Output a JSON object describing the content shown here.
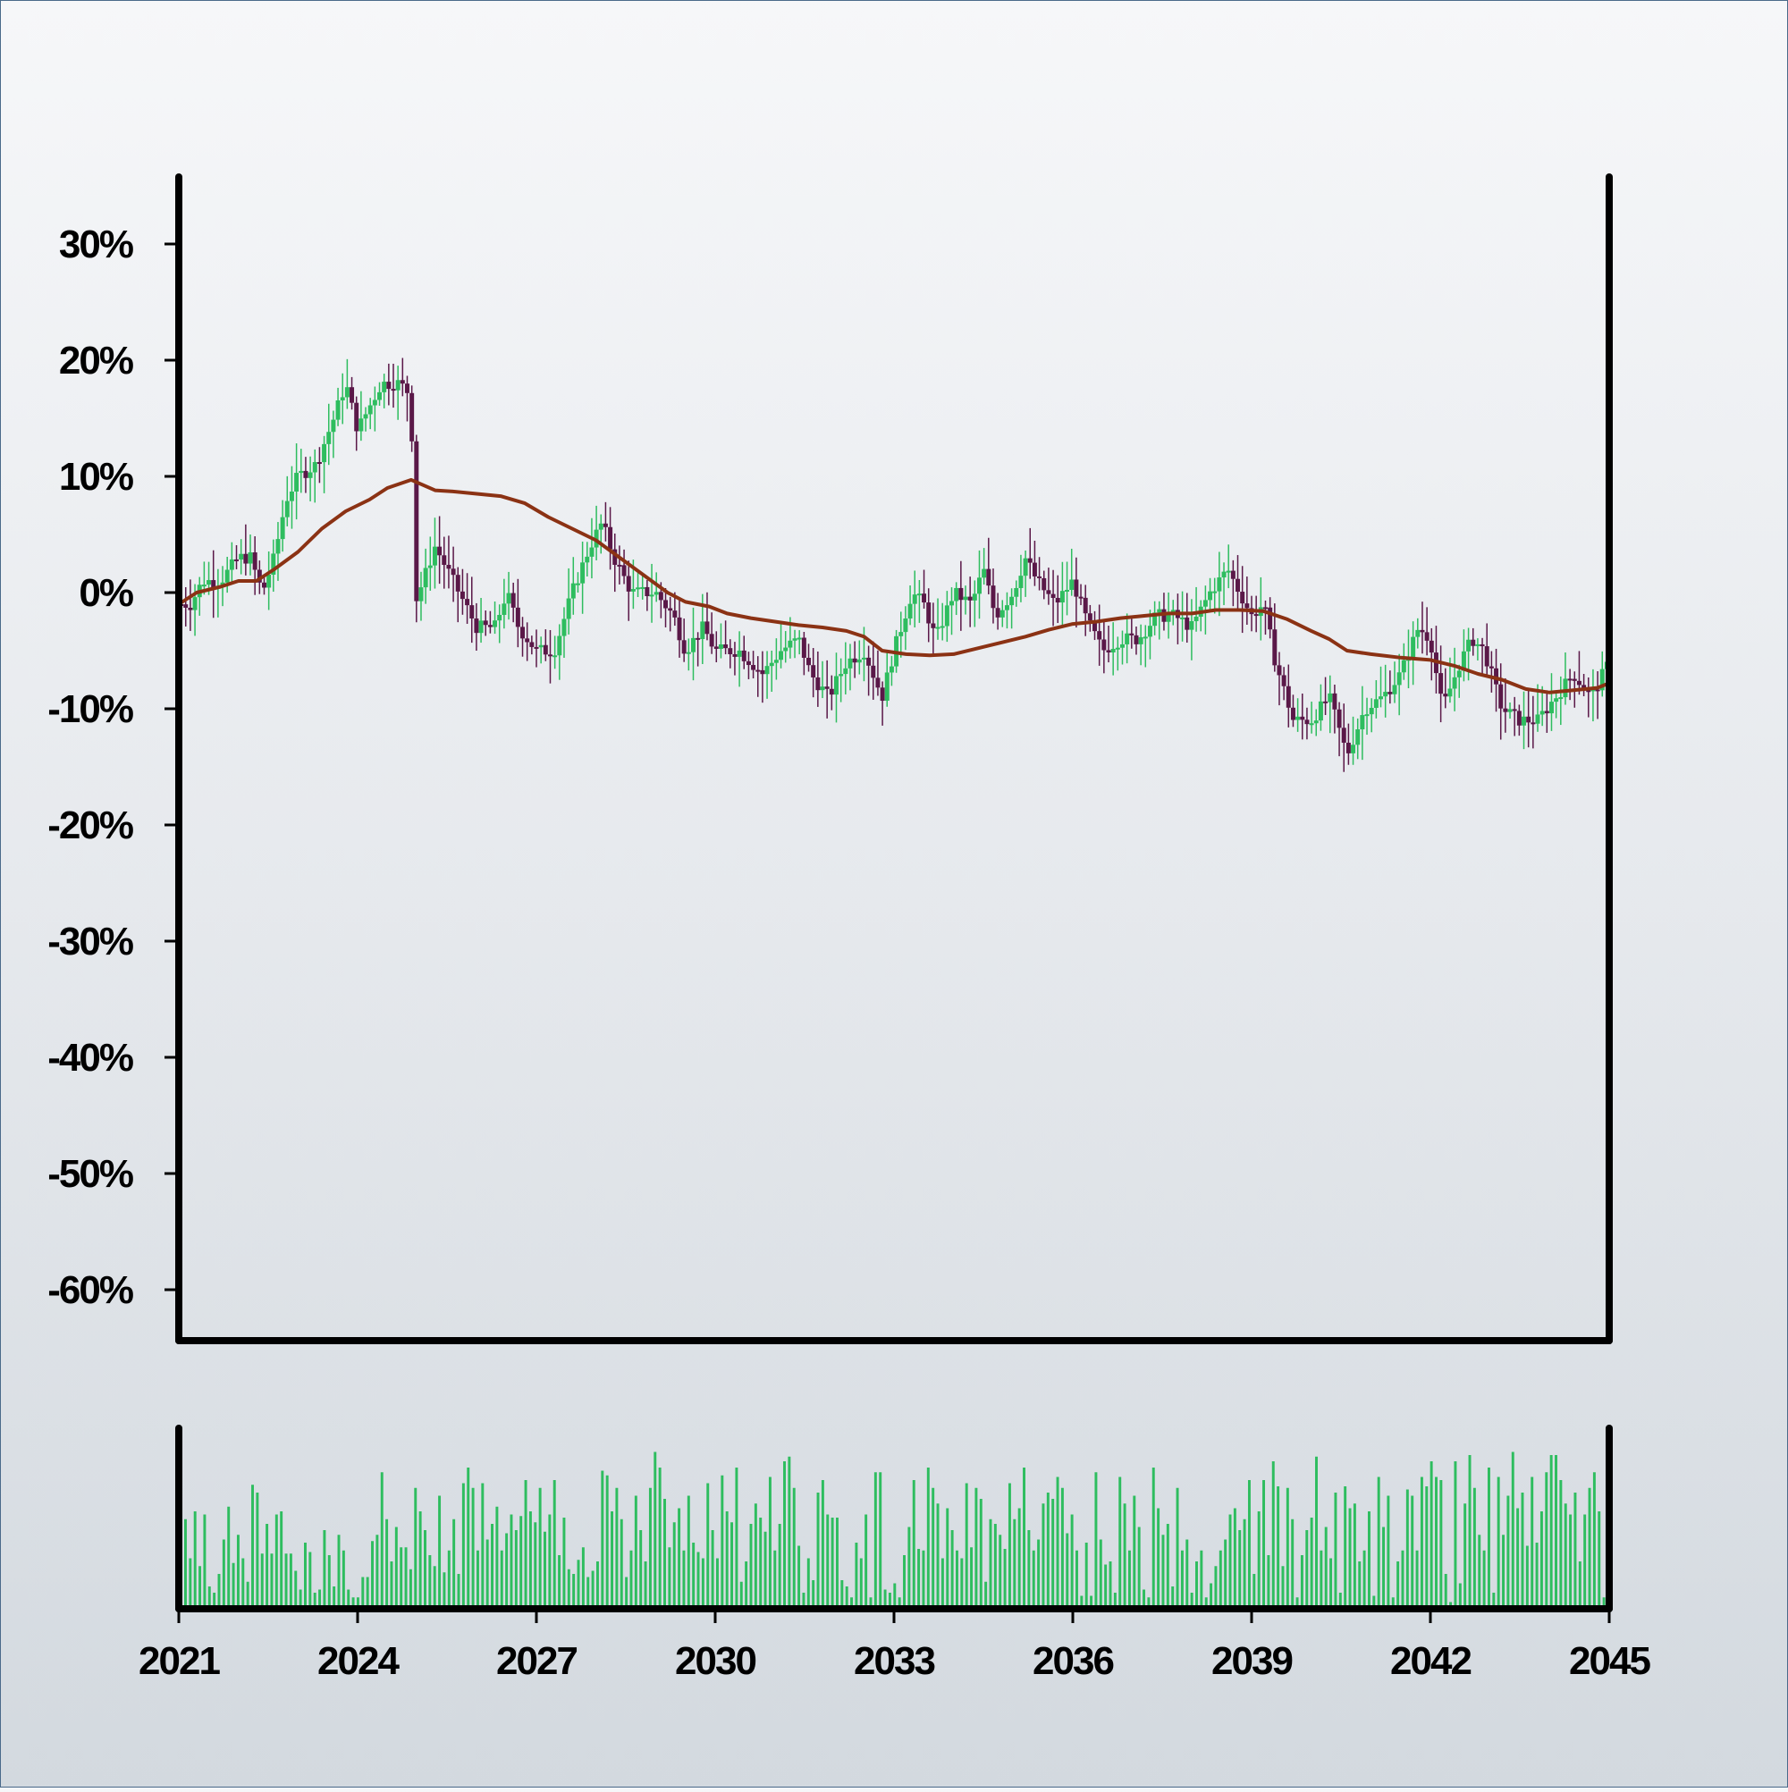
{
  "chart_data": {
    "type": "candlestick",
    "x_start": "2021",
    "x_end": "2045",
    "x_range": [
      2021,
      2045
    ],
    "ylim": [
      -65,
      35
    ],
    "y_ticks": [
      30,
      20,
      10,
      0,
      -10,
      -20,
      -30,
      -40,
      -50,
      -60
    ],
    "y_tick_labels": [
      "30%",
      "20%",
      "10%",
      "0%",
      "-10%",
      "-20%",
      "-30%",
      "-40%",
      "-50%",
      "-60%"
    ],
    "x_ticks": [
      2021,
      2024,
      2027,
      2030,
      2033,
      2036,
      2039,
      2042,
      2045
    ],
    "x_tick_labels": [
      "2021",
      "2024",
      "2027",
      "2030",
      "2033",
      "2036",
      "2039",
      "2042",
      "2045"
    ],
    "colors": {
      "up": "#2ebd5f",
      "down": "#5a1848",
      "moving_average": "#8b3214",
      "volume": "#2ebd5f",
      "axis": "#000000"
    },
    "close_path": [
      [
        2021.0,
        -1
      ],
      [
        2021.2,
        -1
      ],
      [
        2021.4,
        1
      ],
      [
        2021.7,
        1
      ],
      [
        2022.0,
        3
      ],
      [
        2022.2,
        3
      ],
      [
        2022.4,
        0
      ],
      [
        2022.6,
        3
      ],
      [
        2022.8,
        8
      ],
      [
        2023.0,
        10
      ],
      [
        2023.3,
        11
      ],
      [
        2023.6,
        15
      ],
      [
        2023.8,
        18
      ],
      [
        2024.0,
        14
      ],
      [
        2024.2,
        16
      ],
      [
        2024.4,
        18
      ],
      [
        2024.7,
        18
      ],
      [
        2024.9,
        17
      ],
      [
        2024.95,
        -1
      ],
      [
        2025.1,
        1
      ],
      [
        2025.3,
        4
      ],
      [
        2025.5,
        2
      ],
      [
        2025.7,
        0
      ],
      [
        2026.0,
        -3
      ],
      [
        2026.3,
        -3
      ],
      [
        2026.5,
        0
      ],
      [
        2026.7,
        -3
      ],
      [
        2027.0,
        -5
      ],
      [
        2027.3,
        -5
      ],
      [
        2027.6,
        0
      ],
      [
        2027.9,
        4
      ],
      [
        2028.1,
        6
      ],
      [
        2028.3,
        3
      ],
      [
        2028.6,
        0
      ],
      [
        2029.0,
        0
      ],
      [
        2029.3,
        -2
      ],
      [
        2029.5,
        -5
      ],
      [
        2029.8,
        -3
      ],
      [
        2030.0,
        -5
      ],
      [
        2030.4,
        -5
      ],
      [
        2030.8,
        -7
      ],
      [
        2031.1,
        -5
      ],
      [
        2031.4,
        -4
      ],
      [
        2031.6,
        -7
      ],
      [
        2031.9,
        -9
      ],
      [
        2032.2,
        -6
      ],
      [
        2032.5,
        -5
      ],
      [
        2032.8,
        -9
      ],
      [
        2033.0,
        -5
      ],
      [
        2033.3,
        0
      ],
      [
        2033.5,
        -1
      ],
      [
        2033.7,
        -4
      ],
      [
        2034.0,
        0
      ],
      [
        2034.3,
        -1
      ],
      [
        2034.5,
        2
      ],
      [
        2034.7,
        -2
      ],
      [
        2035.0,
        0
      ],
      [
        2035.2,
        3
      ],
      [
        2035.4,
        1
      ],
      [
        2035.7,
        -1
      ],
      [
        2036.0,
        1
      ],
      [
        2036.2,
        -2
      ],
      [
        2036.5,
        -5
      ],
      [
        2036.8,
        -4
      ],
      [
        2037.1,
        -4
      ],
      [
        2037.4,
        -2
      ],
      [
        2037.7,
        -2
      ],
      [
        2038.0,
        -3
      ],
      [
        2038.3,
        0
      ],
      [
        2038.6,
        2
      ],
      [
        2038.8,
        0
      ],
      [
        2039.0,
        -2
      ],
      [
        2039.2,
        -1
      ],
      [
        2039.4,
        -6
      ],
      [
        2039.7,
        -11
      ],
      [
        2040.0,
        -11
      ],
      [
        2040.3,
        -9
      ],
      [
        2040.6,
        -14
      ],
      [
        2040.9,
        -10
      ],
      [
        2041.2,
        -9
      ],
      [
        2041.5,
        -7
      ],
      [
        2041.8,
        -3
      ],
      [
        2042.0,
        -4
      ],
      [
        2042.2,
        -10
      ],
      [
        2042.5,
        -6
      ],
      [
        2042.7,
        -4
      ],
      [
        2042.9,
        -5
      ],
      [
        2043.2,
        -10
      ],
      [
        2043.5,
        -11
      ],
      [
        2043.8,
        -11
      ],
      [
        2044.1,
        -9
      ],
      [
        2044.4,
        -7
      ],
      [
        2044.7,
        -9
      ],
      [
        2045.0,
        -6
      ]
    ],
    "moving_average": [
      [
        2021.0,
        -1
      ],
      [
        2021.3,
        0
      ],
      [
        2021.7,
        0.5
      ],
      [
        2022.0,
        1
      ],
      [
        2022.3,
        1
      ],
      [
        2022.6,
        2
      ],
      [
        2023.0,
        3.5
      ],
      [
        2023.4,
        5.5
      ],
      [
        2023.8,
        7
      ],
      [
        2024.2,
        8
      ],
      [
        2024.5,
        9
      ],
      [
        2024.9,
        9.7
      ],
      [
        2025.3,
        8.8
      ],
      [
        2025.6,
        8.7
      ],
      [
        2026.0,
        8.5
      ],
      [
        2026.4,
        8.3
      ],
      [
        2026.8,
        7.7
      ],
      [
        2027.2,
        6.5
      ],
      [
        2027.6,
        5.5
      ],
      [
        2028.0,
        4.5
      ],
      [
        2028.4,
        3
      ],
      [
        2028.8,
        1.5
      ],
      [
        2029.2,
        0
      ],
      [
        2029.5,
        -0.8
      ],
      [
        2029.9,
        -1.2
      ],
      [
        2030.2,
        -1.8
      ],
      [
        2030.6,
        -2.2
      ],
      [
        2031.0,
        -2.5
      ],
      [
        2031.4,
        -2.8
      ],
      [
        2031.8,
        -3
      ],
      [
        2032.2,
        -3.3
      ],
      [
        2032.5,
        -3.8
      ],
      [
        2032.8,
        -5
      ],
      [
        2033.2,
        -5.3
      ],
      [
        2033.6,
        -5.4
      ],
      [
        2034.0,
        -5.3
      ],
      [
        2034.4,
        -4.8
      ],
      [
        2034.8,
        -4.3
      ],
      [
        2035.2,
        -3.8
      ],
      [
        2035.6,
        -3.2
      ],
      [
        2036.0,
        -2.7
      ],
      [
        2036.4,
        -2.5
      ],
      [
        2036.8,
        -2.2
      ],
      [
        2037.2,
        -2
      ],
      [
        2037.6,
        -1.8
      ],
      [
        2038.0,
        -1.8
      ],
      [
        2038.4,
        -1.5
      ],
      [
        2038.8,
        -1.5
      ],
      [
        2039.2,
        -1.6
      ],
      [
        2039.6,
        -2.3
      ],
      [
        2040.0,
        -3.3
      ],
      [
        2040.3,
        -4
      ],
      [
        2040.6,
        -5
      ],
      [
        2041.0,
        -5.3
      ],
      [
        2041.5,
        -5.6
      ],
      [
        2042.0,
        -5.8
      ],
      [
        2042.4,
        -6.3
      ],
      [
        2042.8,
        -7
      ],
      [
        2043.2,
        -7.5
      ],
      [
        2043.6,
        -8.3
      ],
      [
        2044.0,
        -8.6
      ],
      [
        2044.4,
        -8.4
      ],
      [
        2044.8,
        -8.2
      ],
      [
        2045.0,
        -7.8
      ]
    ],
    "volume_relative": [
      0.55,
      0.3,
      0.6,
      0.25,
      0.58,
      0.12,
      0.08,
      0.2,
      0.42,
      0.63,
      0.27,
      0.45,
      0.3,
      0.15,
      0.77,
      0.72,
      0.33,
      0.52,
      0.33,
      0.58,
      0.6,
      0.33,
      0.33,
      0.22,
      0.1,
      0.4,
      0.34,
      0.08,
      0.1,
      0.48,
      0.32,
      0.12,
      0.45,
      0.35,
      0.1,
      0.05,
      0.05,
      0.18,
      0.18,
      0.41,
      0.45,
      0.85,
      0.55,
      0.28,
      0.5,
      0.37,
      0.37,
      0.23,
      0.75,
      0.6,
      0.48,
      0.32,
      0.25,
      0.7,
      0.21,
      0.35,
      0.55,
      0.2,
      0.78,
      0.88,
      0.75,
      0.35,
      0.78,
      0.42,
      0.52,
      0.63,
      0.35,
      0.46,
      0.58,
      0.48,
      0.57,
      0.8,
      0.6,
      0.53,
      0.75,
      0.47,
      0.58,
      0.8,
      0.32,
      0.56,
      0.23,
      0.2,
      0.29,
      0.37,
      0.18,
      0.22,
      0.28,
      0.86,
      0.83,
      0.6,
      0.75,
      0.55,
      0.18,
      0.35,
      0.7,
      0.48,
      0.28,
      0.75,
      0.98,
      0.88,
      0.68,
      0.37,
      0.53,
      0.62,
      0.35,
      0.7,
      0.4,
      0.34,
      0.3,
      0.78,
      0.48,
      0.3,
      0.83,
      0.6,
      0.53,
      0.88,
      0.15,
      0.28,
      0.52,
      0.65,
      0.56,
      0.47,
      0.82,
      0.35,
      0.52,
      0.92,
      0.95,
      0.75,
      0.38,
      0.08,
      0.3,
      0.16,
      0.72,
      0.8,
      0.58,
      0.56,
      0.56,
      0.16,
      0.12,
      0.05,
      0.4,
      0.3,
      0.58,
      0.05,
      0.85,
      0.85,
      0.1,
      0.08,
      0.14,
      0.05,
      0.32,
      0.5,
      0.8,
      0.36,
      0.35,
      0.88,
      0.75,
      0.65,
      0.3,
      0.62,
      0.48,
      0.35,
      0.3,
      0.78,
      0.37,
      0.75,
      0.68,
      0.15,
      0.55,
      0.52,
      0.45,
      0.36,
      0.78,
      0.55,
      0.62,
      0.88,
      0.48,
      0.35,
      0.42,
      0.65,
      0.72,
      0.68,
      0.82,
      0.75,
      0.46,
      0.58,
      0.35,
      0.06,
      0.4,
      0.06,
      0.85,
      0.42,
      0.26,
      0.28,
      0.08,
      0.82,
      0.65,
      0.35,
      0.7,
      0.5,
      0.1,
      0.05,
      0.88,
      0.62,
      0.45,
      0.52,
      0.12,
      0.75,
      0.35,
      0.42,
      0.08,
      0.28,
      0.35,
      0.05,
      0.14,
      0.25,
      0.35,
      0.42,
      0.58,
      0.62,
      0.48,
      0.55,
      0.8,
      0.2,
      0.6,
      0.8,
      0.32,
      0.92,
      0.76,
      0.25,
      0.75,
      0.55,
      0.05,
      0.32,
      0.48,
      0.56,
      0.95,
      0.35,
      0.5,
      0.3,
      0.72,
      0.08,
      0.76,
      0.62,
      0.65,
      0.28,
      0.35,
      0.6,
      0.06,
      0.82,
      0.5,
      0.7,
      0.05,
      0.28,
      0.35,
      0.74,
      0.7,
      0.35,
      0.82,
      0.76,
      0.92,
      0.82,
      0.8,
      0.2,
      0.02,
      0.92,
      0.14,
      0.65,
      0.96,
      0.75,
      0.45,
      0.35,
      0.88,
      0.08,
      0.82,
      0.45,
      0.7,
      0.98,
      0.62,
      0.72,
      0.38,
      0.82,
      0.4,
      0.6,
      0.85,
      0.96,
      0.96,
      0.8,
      0.65,
      0.58,
      0.72,
      0.28,
      0.58,
      0.75,
      0.85,
      0.6,
      0.05
    ]
  }
}
